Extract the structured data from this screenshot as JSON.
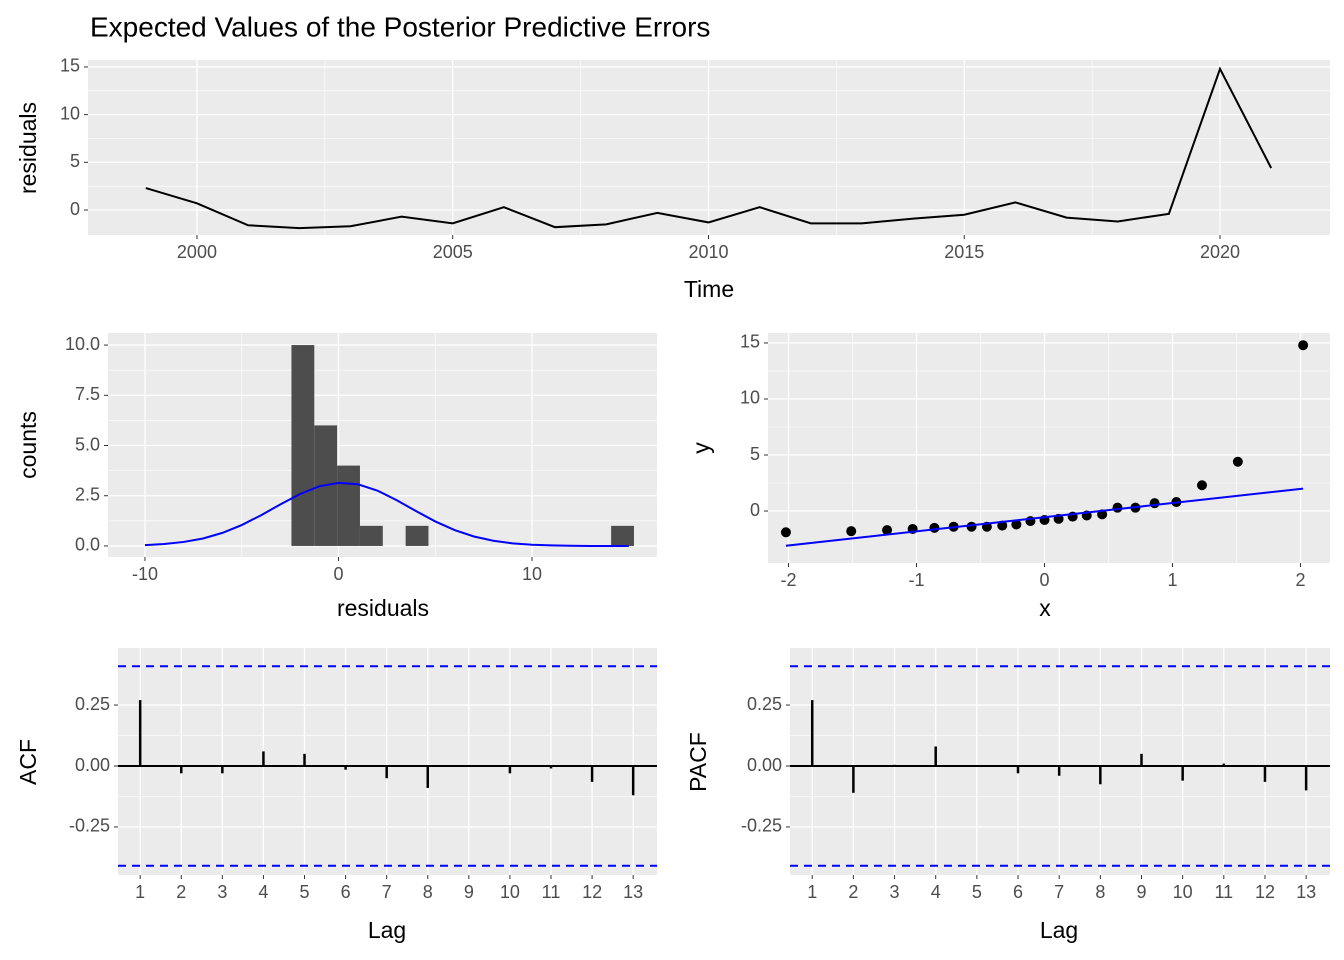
{
  "chart_data": [
    {
      "type": "line",
      "title": "Expected Values of the Posterior Predictive Errors",
      "xlabel": "Time",
      "ylabel": "residuals",
      "x": [
        1999,
        2000,
        2001,
        2002,
        2003,
        2004,
        2005,
        2006,
        2007,
        2008,
        2009,
        2010,
        2011,
        2012,
        2013,
        2014,
        2015,
        2016,
        2017,
        2018,
        2019,
        2020,
        2021
      ],
      "values": [
        2.3,
        0.7,
        -1.6,
        -1.9,
        -1.7,
        -0.7,
        -1.4,
        0.3,
        -1.8,
        -1.5,
        -0.3,
        -1.3,
        0.3,
        -1.4,
        -1.4,
        -0.9,
        -0.5,
        0.8,
        -0.8,
        -1.2,
        -0.4,
        14.8,
        4.4
      ],
      "color": "#000000",
      "xlim": [
        1997.87,
        2022.15
      ],
      "xticks": [
        2000,
        2005,
        2010,
        2015,
        2020
      ],
      "ylim": [
        -2.62,
        15.73
      ],
      "yticks": [
        0,
        5,
        10,
        15
      ],
      "grid": true
    },
    {
      "type": "histogram",
      "xlabel": "residuals",
      "ylabel": "counts",
      "bins": [
        -2.43,
        -1.25,
        -0.07,
        1.11,
        2.29,
        3.47,
        4.65,
        5.83,
        7.01,
        8.19,
        9.37,
        10.55,
        11.73,
        12.91,
        14.09,
        15.27
      ],
      "counts": [
        10,
        6,
        4,
        1,
        0,
        1,
        0,
        0,
        0,
        0,
        0,
        0,
        0,
        0,
        1
      ],
      "color": "#4D4D4D",
      "curve": {
        "x": [
          -10,
          -9,
          -8,
          -7,
          -6,
          -5,
          -4,
          -3,
          -2,
          -1,
          0,
          1,
          2,
          3,
          4,
          5,
          6,
          7,
          8,
          9,
          10,
          11,
          12,
          13,
          14,
          15
        ],
        "values": [
          0.04,
          0.1,
          0.2,
          0.37,
          0.65,
          1.04,
          1.53,
          2.07,
          2.58,
          2.97,
          3.14,
          3.07,
          2.76,
          2.28,
          1.74,
          1.22,
          0.79,
          0.47,
          0.26,
          0.13,
          0.06,
          0.03,
          0.01,
          0,
          0,
          0
        ],
        "color": "#0000FF"
      },
      "xlim": [
        -11.91,
        16.46
      ],
      "xticks": [
        -10,
        0,
        10
      ],
      "ylim": [
        -0.55,
        10.6
      ],
      "yticks": [
        {
          "value": 0,
          "label": "0.0"
        },
        2.5,
        {
          "value": 5,
          "label": "5.0"
        },
        7.5,
        {
          "value": 10,
          "label": "10.0"
        }
      ],
      "grid": true
    },
    {
      "type": "scatter",
      "xlabel": "x",
      "ylabel": "y",
      "x": [
        -2.02,
        -1.51,
        -1.23,
        -1.03,
        -0.86,
        -0.71,
        -0.57,
        -0.45,
        -0.33,
        -0.22,
        -0.11,
        0,
        0.11,
        0.22,
        0.33,
        0.45,
        0.57,
        0.71,
        0.86,
        1.03,
        1.23,
        1.51,
        2.02
      ],
      "values": [
        -1.9,
        -1.8,
        -1.7,
        -1.6,
        -1.5,
        -1.4,
        -1.4,
        -1.4,
        -1.3,
        -1.2,
        -0.9,
        -0.8,
        -0.7,
        -0.5,
        -0.4,
        -0.3,
        0.3,
        0.3,
        0.7,
        0.8,
        2.3,
        4.4,
        14.8
      ],
      "color": "#000000",
      "line": {
        "x": [
          -2.02,
          2.02
        ],
        "values": [
          -3.1,
          2.0
        ],
        "color": "#0000FF"
      },
      "xlim": [
        -2.16,
        2.23
      ],
      "xticks": [
        -2,
        -1,
        0,
        1,
        2
      ],
      "ylim": [
        -4.64,
        15.89
      ],
      "yticks": [
        0,
        5,
        10,
        15
      ],
      "grid": true
    },
    {
      "type": "bar",
      "xlabel": "Lag",
      "ylabel": "ACF",
      "x": [
        1,
        2,
        3,
        4,
        5,
        6,
        7,
        8,
        9,
        10,
        11,
        12,
        13
      ],
      "values": [
        0.27,
        -0.03,
        -0.03,
        0.06,
        0.05,
        -0.015,
        -0.05,
        -0.09,
        0,
        -0.03,
        -0.01,
        -0.065,
        -0.12
      ],
      "color": "#000000",
      "bounds": [
        0.409,
        -0.409
      ],
      "bound_color": "#0000FF",
      "xlim": [
        0.46,
        13.58
      ],
      "xticks": [
        1,
        2,
        3,
        4,
        5,
        6,
        7,
        8,
        9,
        10,
        11,
        12,
        13
      ],
      "ylim": [
        -0.447,
        0.484
      ],
      "yticks": [
        -0.25,
        {
          "value": 0,
          "label": "0.00"
        },
        0.25
      ],
      "grid": true
    },
    {
      "type": "bar",
      "xlabel": "Lag",
      "ylabel": "PACF",
      "x": [
        1,
        2,
        3,
        4,
        5,
        6,
        7,
        8,
        9,
        10,
        11,
        12,
        13
      ],
      "values": [
        0.27,
        -0.11,
        0.005,
        0.08,
        0,
        -0.03,
        -0.04,
        -0.075,
        0.05,
        -0.06,
        0.01,
        -0.065,
        -0.1
      ],
      "color": "#000000",
      "bounds": [
        0.409,
        -0.409
      ],
      "bound_color": "#0000FF",
      "xlim": [
        0.46,
        13.58
      ],
      "xticks": [
        1,
        2,
        3,
        4,
        5,
        6,
        7,
        8,
        9,
        10,
        11,
        12,
        13
      ],
      "ylim": [
        -0.447,
        0.484
      ],
      "yticks": [
        -0.25,
        {
          "value": 0,
          "label": "0.00"
        },
        0.25
      ],
      "grid": true
    }
  ]
}
